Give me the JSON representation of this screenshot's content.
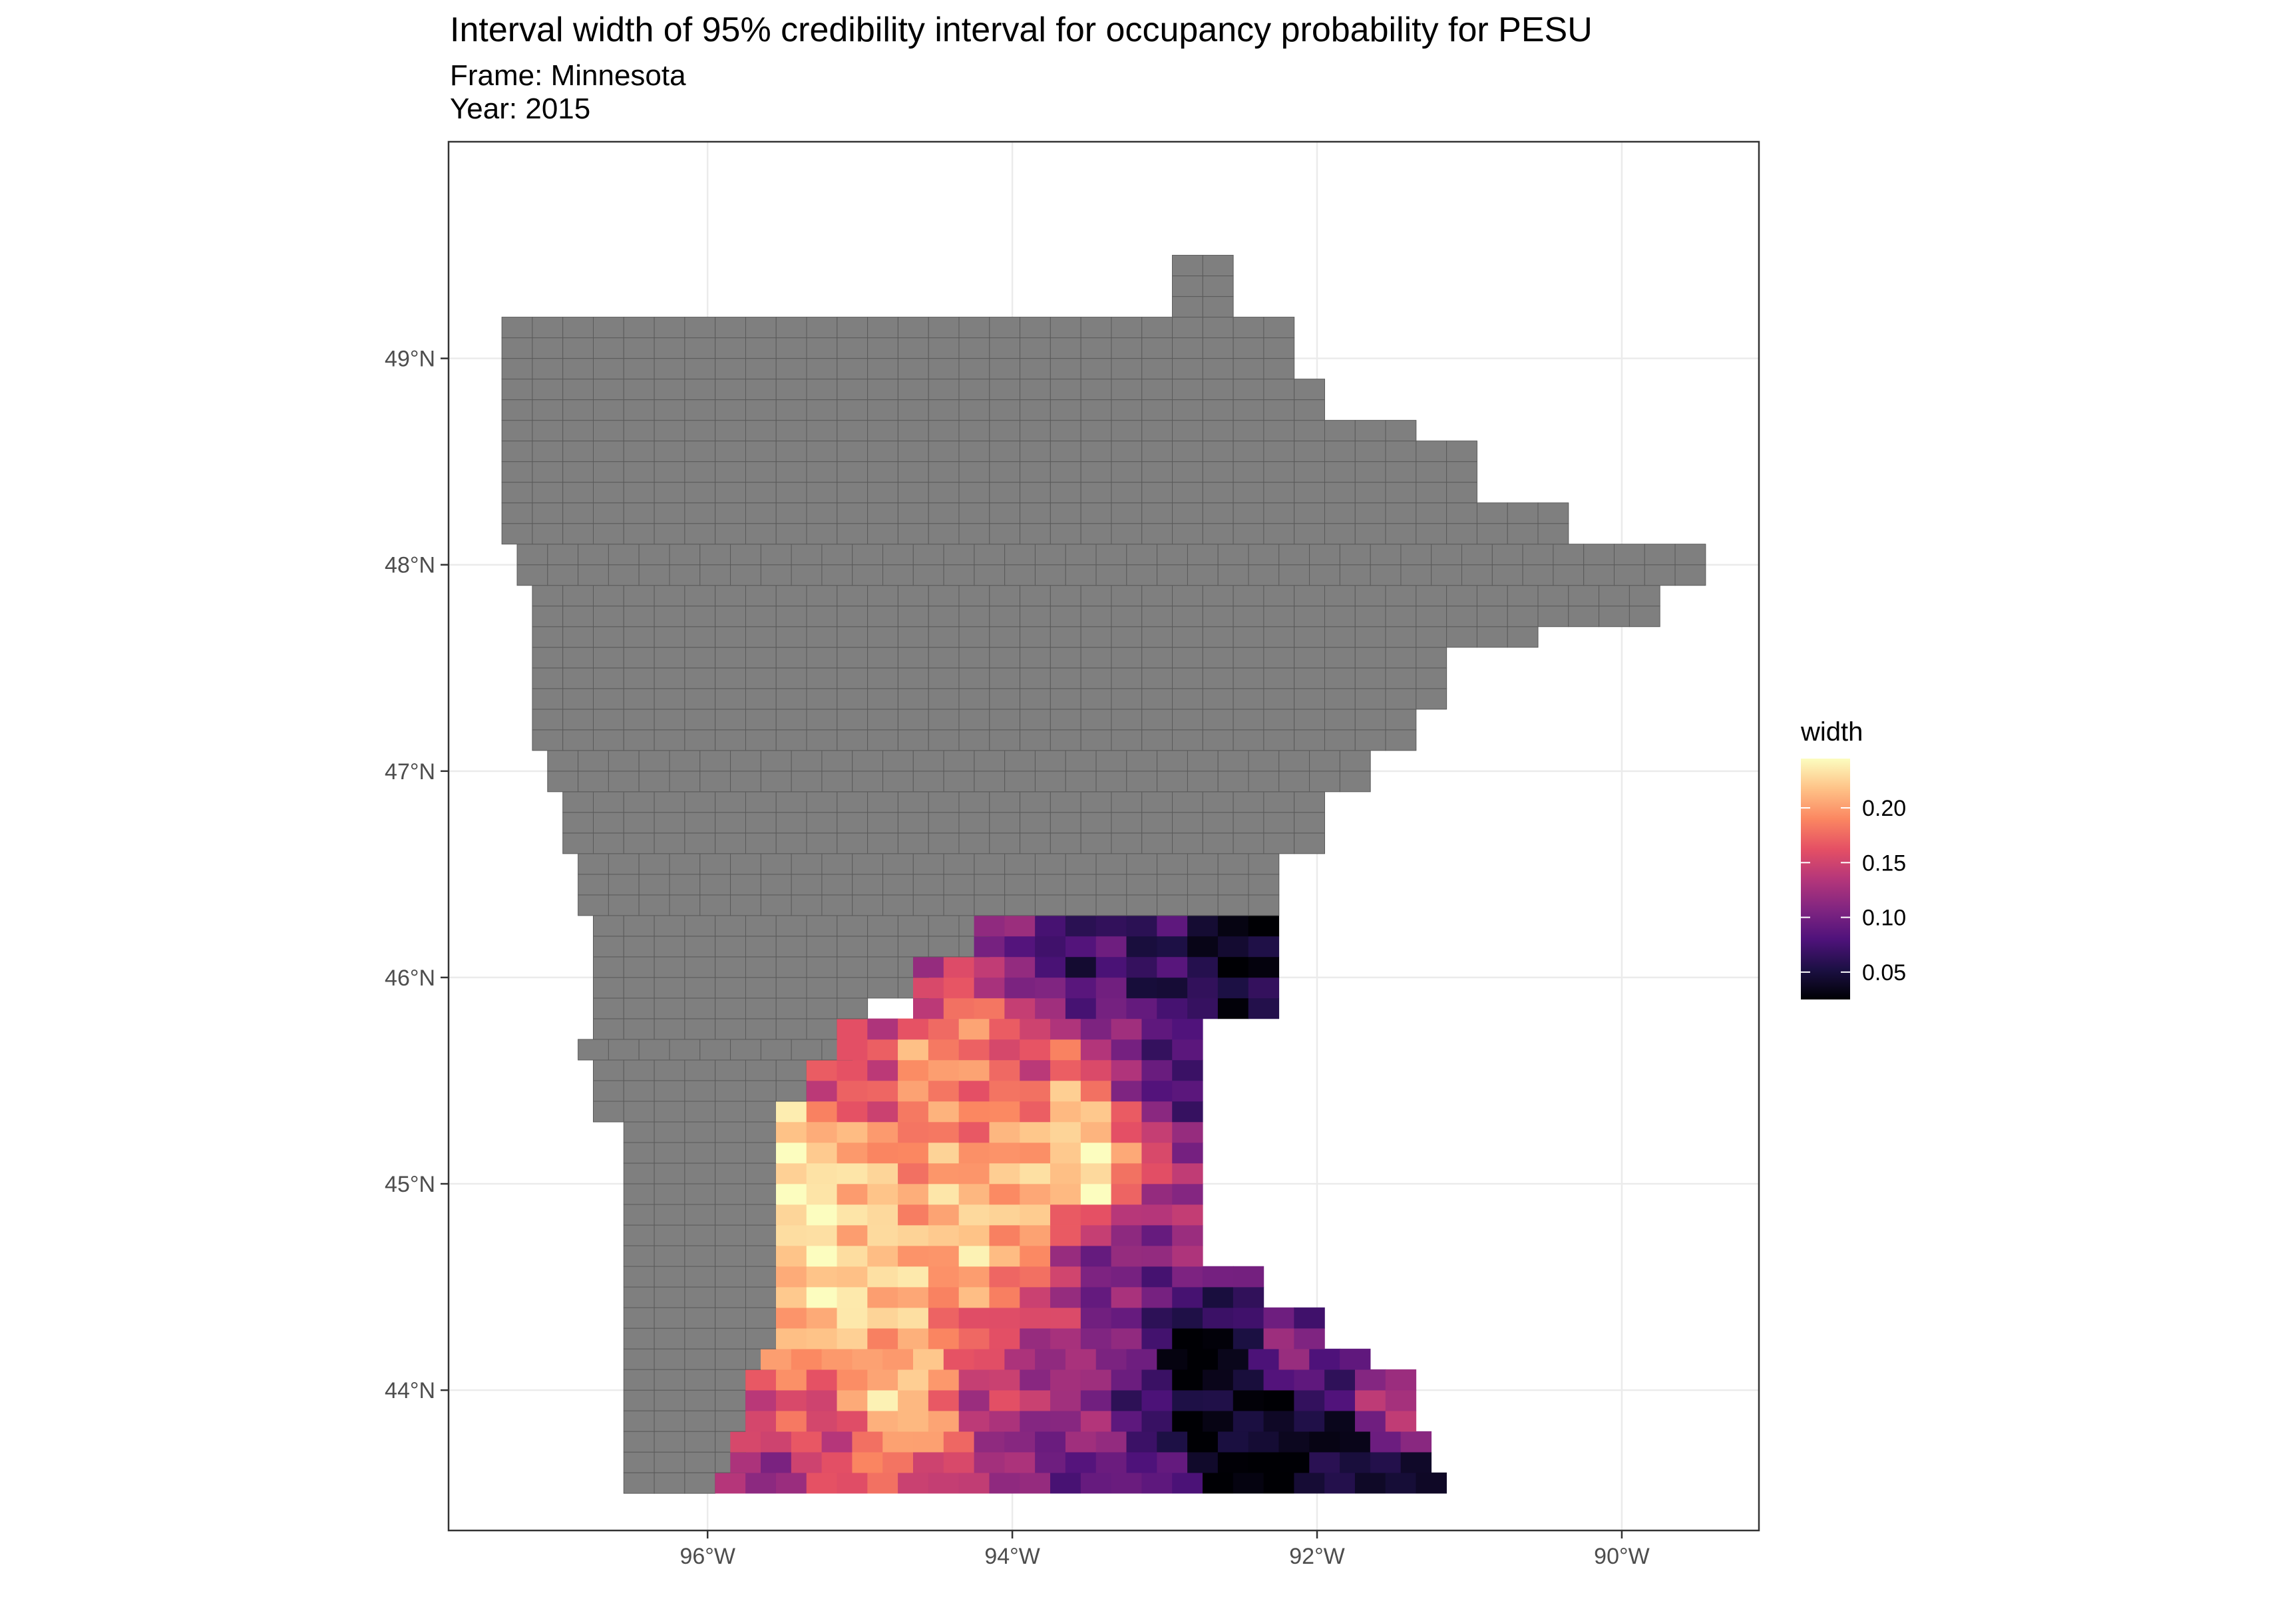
{
  "title": "Interval width of 95% credibility interval for occupancy probability for PESU",
  "subtitle_frame": "Frame: Minnesota",
  "subtitle_year": "Year: 2015",
  "axes": {
    "x_ticks": [
      {
        "value": -96,
        "label": "96°W"
      },
      {
        "value": -94,
        "label": "94°W"
      },
      {
        "value": -92,
        "label": "92°W"
      },
      {
        "value": -90,
        "label": "90°W"
      }
    ],
    "y_ticks": [
      {
        "value": 44,
        "label": "44°N"
      },
      {
        "value": 45,
        "label": "45°N"
      },
      {
        "value": 46,
        "label": "46°N"
      },
      {
        "value": 47,
        "label": "47°N"
      },
      {
        "value": 48,
        "label": "48°N"
      },
      {
        "value": 49,
        "label": "49°N"
      }
    ],
    "lon_range": [
      -97.7,
      -89.1
    ],
    "lat_range": [
      43.32,
      50.05
    ],
    "grid": true
  },
  "legend": {
    "title": "width",
    "placement": "right",
    "min": 0.025,
    "max": 0.245,
    "breaks": [
      {
        "value": 0.2,
        "label": "0.20"
      },
      {
        "value": 0.15,
        "label": "0.15"
      },
      {
        "value": 0.1,
        "label": "0.10"
      },
      {
        "value": 0.05,
        "label": "0.05"
      }
    ],
    "colormap": "magma",
    "colormap_stops": [
      "#000004",
      "#1c1044",
      "#4f127b",
      "#812581",
      "#b5367a",
      "#e55064",
      "#fb8761",
      "#fec287",
      "#fcfdbf"
    ]
  },
  "colors": {
    "no_data_fill": "#7f7f7f",
    "cell_border": "#5a5a5a",
    "panel_border": "#333333",
    "grid": "#ebebeb"
  },
  "chart_data": {
    "type": "heatmap",
    "cell_size_deg": {
      "lon": 0.2,
      "lat": 0.1
    },
    "gray_extent_rows": [
      {
        "lat": 49.35,
        "lon_from": -92.85,
        "lon_to": -92.65
      },
      {
        "lat": 49.05,
        "lon_from": -97.25,
        "lon_to": -92.25
      },
      {
        "lat": 48.85,
        "lon_from": -97.25,
        "lon_to": -91.95
      },
      {
        "lat": 48.65,
        "lon_from": -97.25,
        "lon_to": -91.35
      },
      {
        "lat": 48.45,
        "lon_from": -97.25,
        "lon_to": -90.95
      },
      {
        "lat": 48.25,
        "lon_from": -97.25,
        "lon_to": -90.35
      },
      {
        "lat": 48.05,
        "lon_from": -97.15,
        "lon_to": -89.45
      },
      {
        "lat": 47.85,
        "lon_from": -97.05,
        "lon_to": -89.85
      },
      {
        "lat": 47.65,
        "lon_from": -97.05,
        "lon_to": -90.55
      },
      {
        "lat": 47.45,
        "lon_from": -97.05,
        "lon_to": -91.15
      },
      {
        "lat": 47.25,
        "lon_from": -97.05,
        "lon_to": -91.45
      },
      {
        "lat": 47.05,
        "lon_from": -96.95,
        "lon_to": -91.75
      },
      {
        "lat": 46.85,
        "lon_from": -96.85,
        "lon_to": -91.95
      },
      {
        "lat": 46.65,
        "lon_from": -96.85,
        "lon_to": -92.05
      },
      {
        "lat": 46.45,
        "lon_from": -96.75,
        "lon_to": -92.25
      },
      {
        "lat": 46.25,
        "lon_from": -96.65,
        "lon_to": -93.85
      },
      {
        "lat": 46.05,
        "lon_from": -96.65,
        "lon_to": -94.55
      },
      {
        "lat": 45.85,
        "lon_from": -96.65,
        "lon_to": -94.95
      },
      {
        "lat": 45.65,
        "lon_from": -96.75,
        "lon_to": -95.15
      },
      {
        "lat": 45.45,
        "lon_from": -96.65,
        "lon_to": -95.35
      },
      {
        "lat": 45.25,
        "lon_from": -96.45,
        "lon_to": -95.45
      },
      {
        "lat": 45.05,
        "lon_from": -96.45,
        "lon_to": -95.45
      },
      {
        "lat": 44.85,
        "lon_from": -96.45,
        "lon_to": -95.45
      },
      {
        "lat": 44.65,
        "lon_from": -96.45,
        "lon_to": -95.45
      },
      {
        "lat": 44.45,
        "lon_from": -96.45,
        "lon_to": -95.45
      },
      {
        "lat": 44.25,
        "lon_from": -96.45,
        "lon_to": -95.45
      },
      {
        "lat": 44.05,
        "lon_from": -96.45,
        "lon_to": -95.55
      },
      {
        "lat": 43.85,
        "lon_from": -96.45,
        "lon_to": -95.65
      },
      {
        "lat": 43.65,
        "lon_from": -96.45,
        "lon_to": -95.75
      }
    ],
    "width_extent_rows": [
      {
        "lat": 46.15,
        "lon_from": -94.15,
        "lon_to": -92.35
      },
      {
        "lat": 45.95,
        "lon_from": -94.55,
        "lon_to": -92.35
      },
      {
        "lat": 45.75,
        "lon_from": -95.05,
        "lon_to": -92.75
      },
      {
        "lat": 45.55,
        "lon_from": -95.25,
        "lon_to": -92.75
      },
      {
        "lat": 45.35,
        "lon_from": -95.45,
        "lon_to": -92.75
      },
      {
        "lat": 45.15,
        "lon_from": -95.45,
        "lon_to": -92.85
      },
      {
        "lat": 44.95,
        "lon_from": -95.45,
        "lon_to": -92.85
      },
      {
        "lat": 44.75,
        "lon_from": -95.45,
        "lon_to": -92.75
      },
      {
        "lat": 44.55,
        "lon_from": -95.45,
        "lon_to": -92.35
      },
      {
        "lat": 44.35,
        "lon_from": -95.45,
        "lon_to": -91.95
      },
      {
        "lat": 44.15,
        "lon_from": -95.55,
        "lon_to": -91.65
      },
      {
        "lat": 43.95,
        "lon_from": -95.65,
        "lon_to": -91.35
      },
      {
        "lat": 43.75,
        "lon_from": -95.75,
        "lon_to": -91.25
      },
      {
        "lat": 43.55,
        "lon_from": -95.85,
        "lon_to": -91.25
      }
    ],
    "width_value_anchors": [
      {
        "lon": -95.35,
        "lat": 44.9,
        "width": 0.24
      },
      {
        "lon": -95.3,
        "lat": 45.2,
        "width": 0.23
      },
      {
        "lon": -95.1,
        "lat": 44.45,
        "width": 0.23
      },
      {
        "lon": -94.75,
        "lat": 44.0,
        "width": 0.23
      },
      {
        "lon": -94.5,
        "lat": 45.6,
        "width": 0.2
      },
      {
        "lon": -94.2,
        "lat": 44.8,
        "width": 0.22
      },
      {
        "lon": -93.6,
        "lat": 45.3,
        "width": 0.22
      },
      {
        "lon": -93.5,
        "lat": 45.1,
        "width": 0.24
      },
      {
        "lon": -93.9,
        "lat": 45.6,
        "width": 0.16
      },
      {
        "lon": -93.6,
        "lat": 46.1,
        "width": 0.07
      },
      {
        "lon": -92.9,
        "lat": 46.0,
        "width": 0.06
      },
      {
        "lon": -92.5,
        "lat": 46.15,
        "width": 0.03
      },
      {
        "lon": -93.0,
        "lat": 45.5,
        "width": 0.08
      },
      {
        "lon": -92.9,
        "lat": 44.85,
        "width": 0.12
      },
      {
        "lon": -92.7,
        "lat": 44.2,
        "width": 0.03
      },
      {
        "lon": -92.4,
        "lat": 43.8,
        "width": 0.03
      },
      {
        "lon": -92.0,
        "lat": 43.6,
        "width": 0.03
      },
      {
        "lon": -91.5,
        "lat": 43.6,
        "width": 0.05
      },
      {
        "lon": -91.4,
        "lat": 43.9,
        "width": 0.14
      },
      {
        "lon": -92.2,
        "lat": 44.3,
        "width": 0.1
      },
      {
        "lon": -93.8,
        "lat": 43.55,
        "width": 0.1
      },
      {
        "lon": -95.5,
        "lat": 43.6,
        "width": 0.13
      },
      {
        "lon": -95.3,
        "lat": 43.9,
        "width": 0.16
      },
      {
        "lon": -94.2,
        "lat": 44.0,
        "width": 0.14
      },
      {
        "lon": -93.3,
        "lat": 44.6,
        "width": 0.1
      },
      {
        "lon": -94.8,
        "lat": 45.9,
        "width": 0.14
      },
      {
        "lon": -95.1,
        "lat": 45.45,
        "width": 0.15
      }
    ]
  }
}
